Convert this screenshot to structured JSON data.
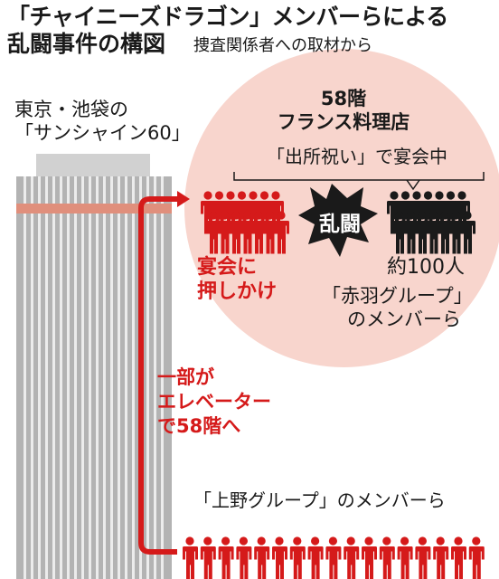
{
  "title_line1": "「チャイニーズドラゴン」メンバーらによる",
  "title_line2": "乱闘事件の構図",
  "subtitle": "捜査関係者への取材から",
  "building": {
    "label_line1": "東京・池袋の",
    "label_line2": "「サンシャイン60」"
  },
  "floor": {
    "label_line1": "58階",
    "label_line2": "フランス料理店"
  },
  "banquet": "「出所祝い」で宴会中",
  "clash": "乱闘",
  "attackers": {
    "action_line1": "宴会に",
    "action_line2": "押しかけ",
    "figure_count": 7
  },
  "defenders": {
    "count": "約100人",
    "group_line1": "「赤羽グループ」",
    "group_line2": "のメンバーら",
    "figure_count": 7
  },
  "elevator": {
    "line1": "一部が",
    "line2": "エレベーター",
    "line3": "で58階へ"
  },
  "ueno": {
    "label": "「上野グループ」のメンバーら",
    "figure_count": 17
  },
  "colors": {
    "red": "#d51a1a",
    "circle": "#f8d5cd",
    "building": "#b3b3b3",
    "stripe": "#ececec",
    "floor": "#e08f7c",
    "black": "#1a1a1a"
  }
}
